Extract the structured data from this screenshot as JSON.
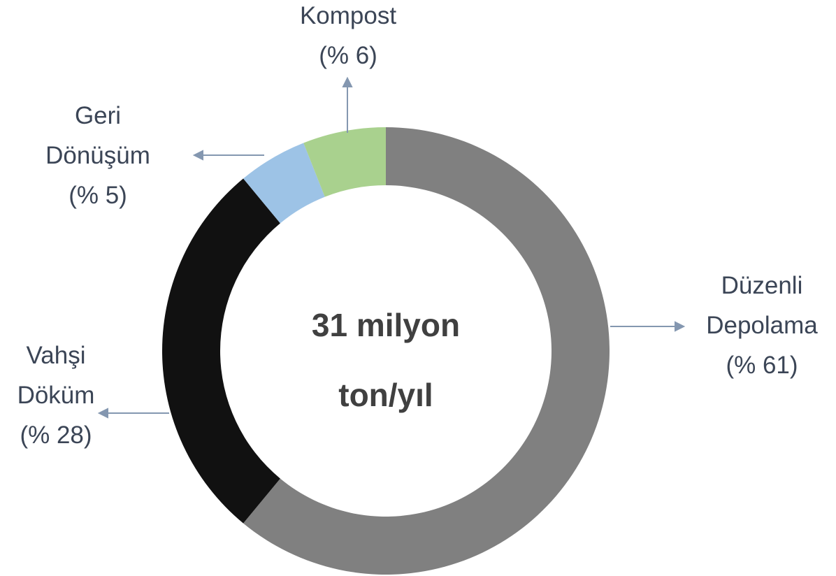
{
  "chart_data": {
    "type": "donut",
    "annotation": "31 milyon ton/yıl",
    "categories": [
      "Düzenli Depolama",
      "Vahşi Döküm",
      "Geri Dönüşüm",
      "Kompost"
    ],
    "values": [
      61,
      28,
      5,
      6
    ],
    "value_labels": [
      "(% 61)",
      "(% 28)",
      "(% 5)",
      "(% 6)"
    ],
    "colors": [
      "#808080",
      "#111111",
      "#9dc3e6",
      "#a9d18e"
    ]
  }
}
